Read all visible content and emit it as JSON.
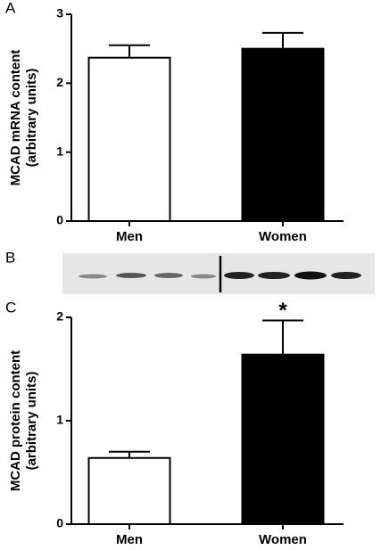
{
  "panel_labels": [
    "A",
    "B",
    "C"
  ],
  "chart_data": [
    {
      "type": "bar",
      "y_label": [
        "MCAD mRNA content",
        "(arbitrary units)"
      ],
      "categories": [
        "Men",
        "Women"
      ],
      "values": [
        2.37,
        2.5
      ],
      "errors": [
        0.18,
        0.23
      ],
      "colors": [
        "#ffffff",
        "#000000"
      ],
      "ylim": [
        0,
        3
      ],
      "yticks": [
        0,
        1,
        2,
        3
      ]
    },
    {
      "type": "bar",
      "y_label": [
        "MCAD protein content",
        "(arbitrary units)"
      ],
      "categories": [
        "Men",
        "Women"
      ],
      "values": [
        0.64,
        1.64
      ],
      "errors": [
        0.06,
        0.33
      ],
      "colors": [
        "#ffffff",
        "#000000"
      ],
      "ylim": [
        0,
        2
      ],
      "yticks": [
        0,
        1,
        2
      ],
      "annotation": "*"
    }
  ]
}
